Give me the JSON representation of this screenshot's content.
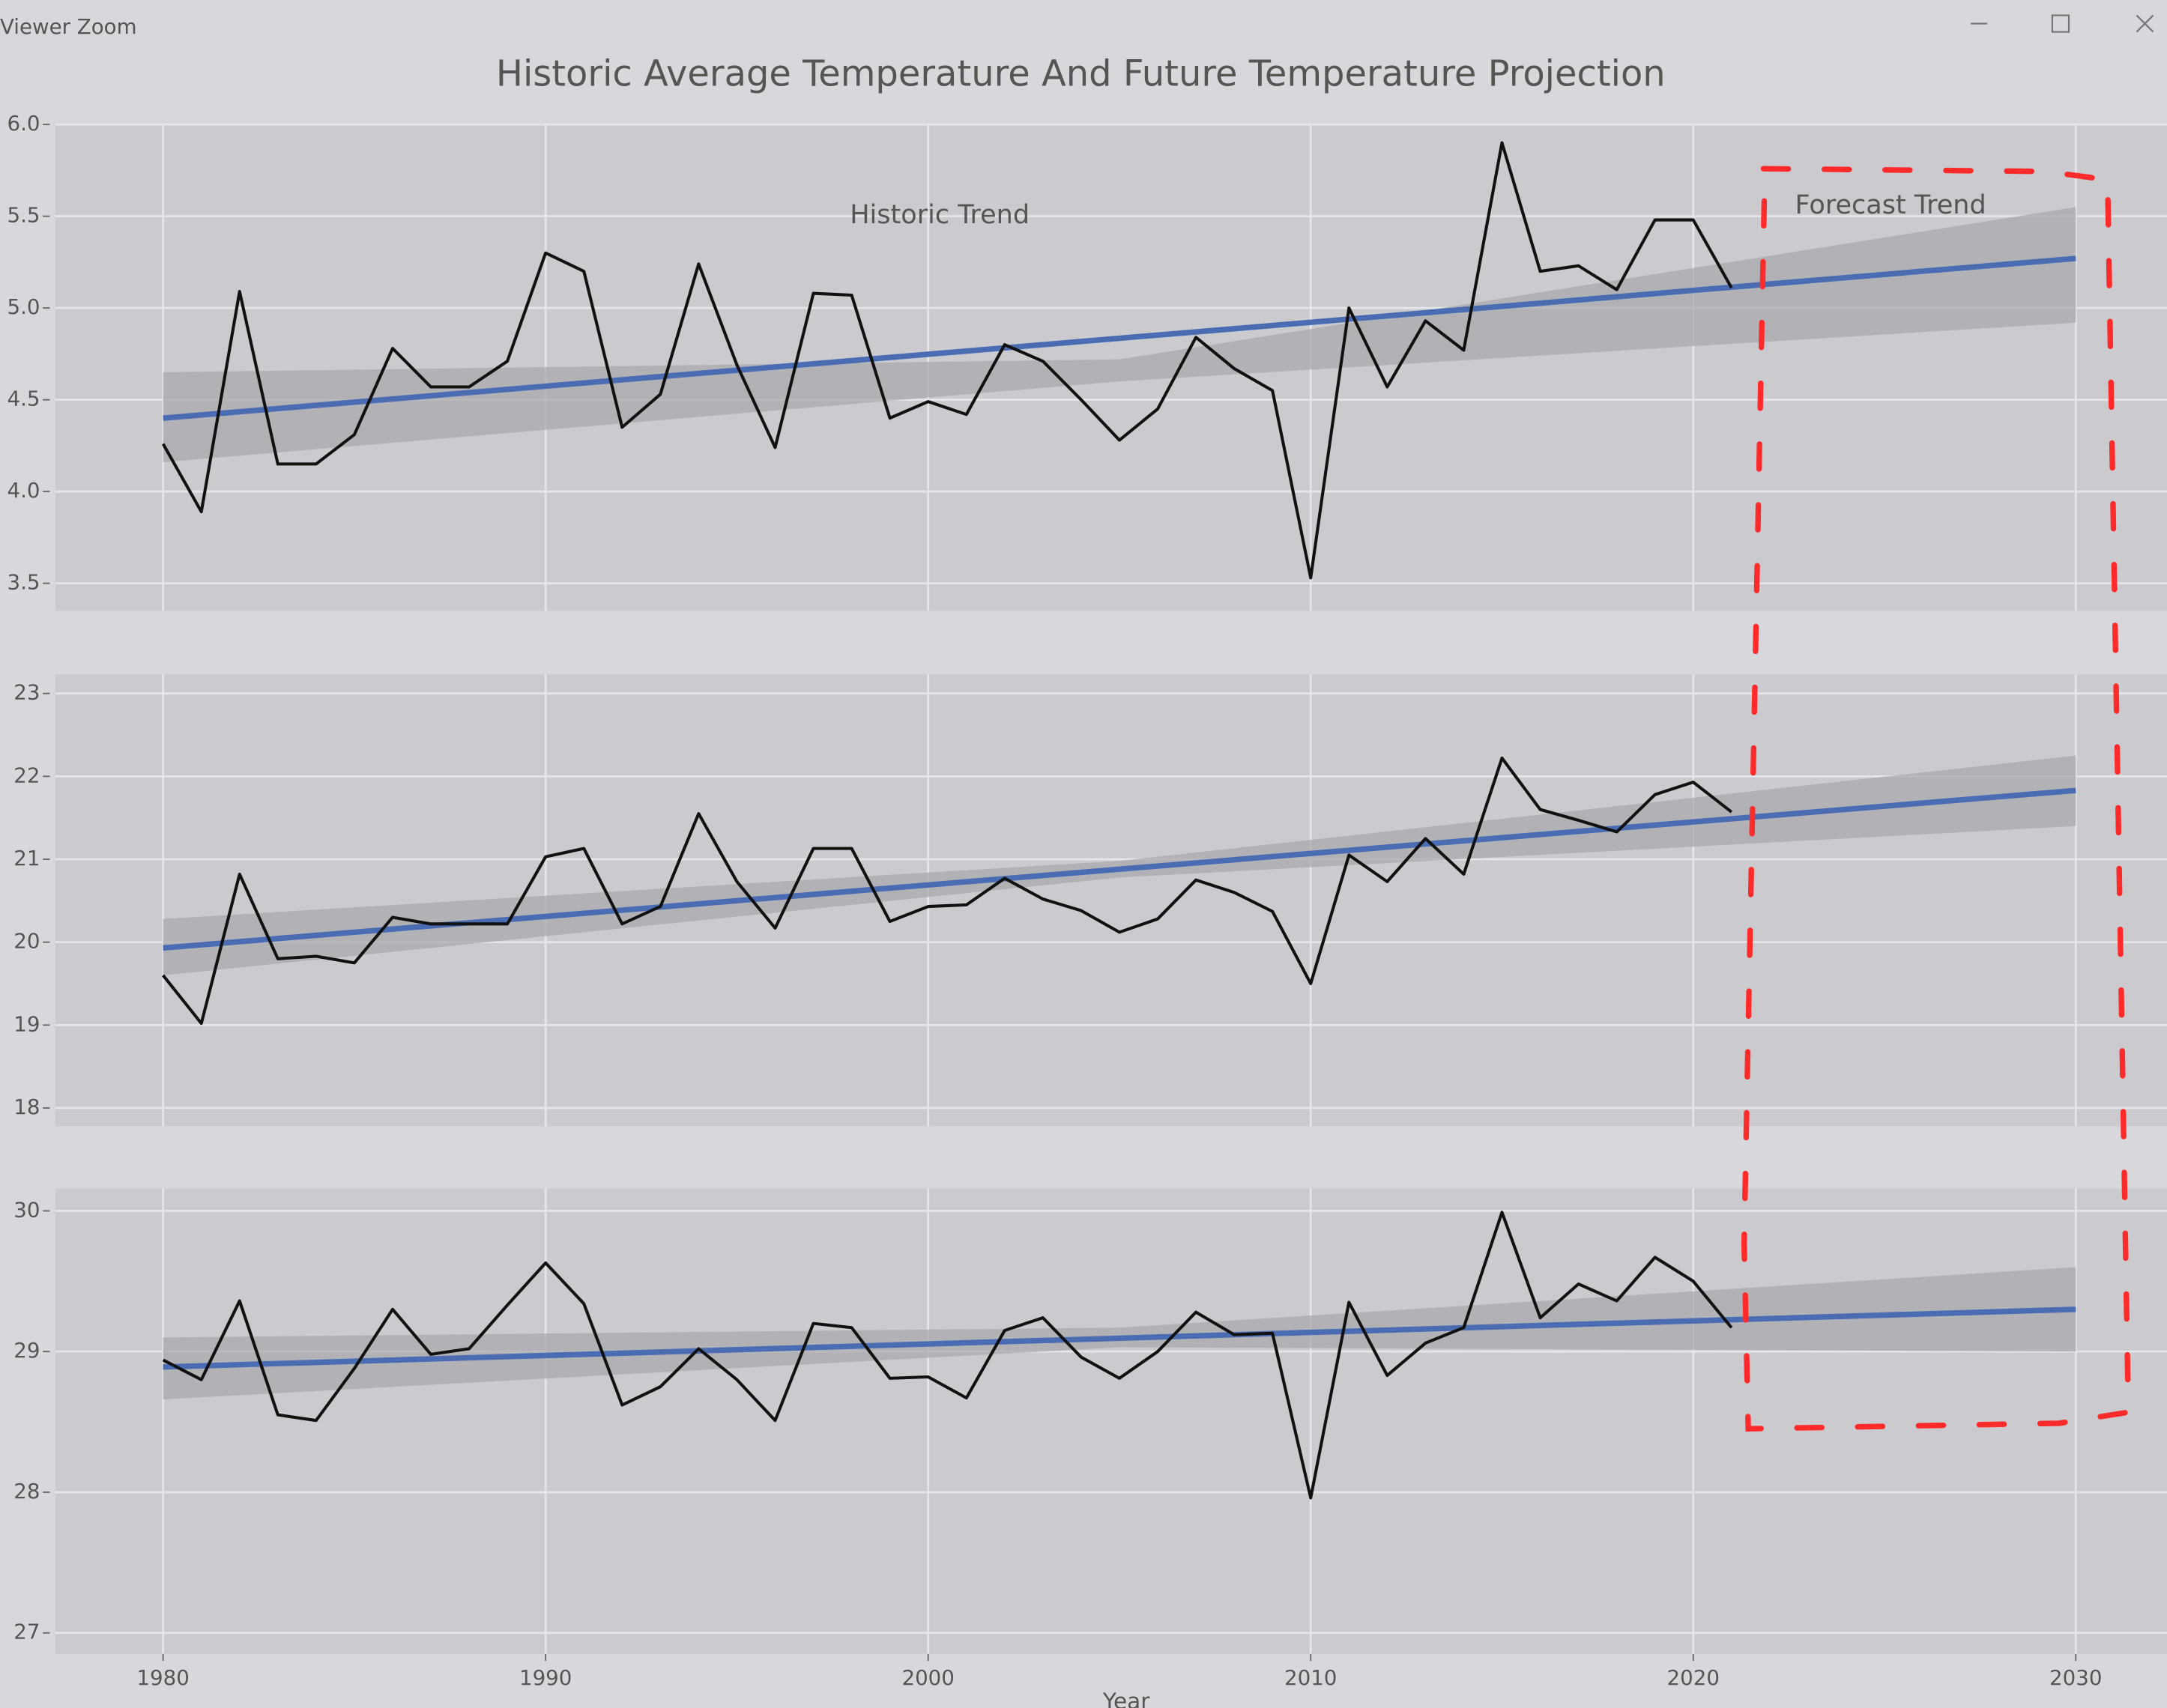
{
  "window": {
    "title": "Viewer Zoom"
  },
  "chart_data": [
    {
      "type": "line",
      "title": "Historic Average Temperature And Future Temperature Projection",
      "annotations": [
        "Historic Trend",
        "Forecast Trend"
      ],
      "x": [
        1980,
        1981,
        1982,
        1983,
        1984,
        1985,
        1986,
        1987,
        1988,
        1989,
        1990,
        1991,
        1992,
        1993,
        1994,
        1995,
        1996,
        1997,
        1998,
        1999,
        2000,
        2001,
        2002,
        2003,
        2004,
        2005,
        2006,
        2007,
        2008,
        2009,
        2010,
        2011,
        2012,
        2013,
        2014,
        2015,
        2016,
        2017,
        2018,
        2019,
        2020,
        2021
      ],
      "series": [
        {
          "color": "#111111",
          "values": [
            4.26,
            3.89,
            5.09,
            4.15,
            4.15,
            4.31,
            4.78,
            4.57,
            4.57,
            4.71,
            5.3,
            5.2,
            4.35,
            4.53,
            5.24,
            4.69,
            4.24,
            5.08,
            5.07,
            4.4,
            4.49,
            4.42,
            4.8,
            4.71,
            4.5,
            4.28,
            4.45,
            4.84,
            4.67,
            4.55,
            3.53,
            5.0,
            4.57,
            4.93,
            4.77,
            5.9,
            5.2,
            5.23,
            5.1,
            5.48,
            5.48,
            5.11
          ]
        }
      ],
      "trend": {
        "color": "#4a6cb3",
        "x": [
          1980,
          2030
        ],
        "values": [
          4.4,
          5.27
        ]
      },
      "band": {
        "color": "#a9a9ad",
        "x": [
          1980,
          2005,
          2030
        ],
        "lower": [
          4.16,
          4.6,
          4.92
        ],
        "upper": [
          4.65,
          4.72,
          5.55
        ]
      },
      "xlim": [
        1980,
        2030
      ],
      "ylim": [
        3.35,
        6.0
      ],
      "yticks": [
        {
          "value": 6.0,
          "label": "6.0"
        },
        5.5,
        {
          "value": 5.0,
          "label": "5.0"
        },
        4.5,
        {
          "value": 4.0,
          "label": "4.0"
        },
        3.5
      ],
      "grid": true
    },
    {
      "type": "line",
      "x": [
        1980,
        1981,
        1982,
        1983,
        1984,
        1985,
        1986,
        1987,
        1988,
        1989,
        1990,
        1991,
        1992,
        1993,
        1994,
        1995,
        1996,
        1997,
        1998,
        1999,
        2000,
        2001,
        2002,
        2003,
        2004,
        2005,
        2006,
        2007,
        2008,
        2009,
        2010,
        2011,
        2012,
        2013,
        2014,
        2015,
        2016,
        2017,
        2018,
        2019,
        2020,
        2021
      ],
      "series": [
        {
          "color": "#111111",
          "values": [
            19.6,
            19.02,
            20.82,
            19.8,
            19.83,
            19.75,
            20.3,
            20.22,
            20.22,
            20.22,
            21.03,
            21.13,
            20.22,
            20.43,
            21.55,
            20.73,
            20.17,
            21.13,
            21.13,
            20.25,
            20.43,
            20.45,
            20.77,
            20.52,
            20.38,
            20.12,
            20.28,
            20.75,
            20.6,
            20.37,
            19.5,
            21.05,
            20.73,
            21.25,
            20.82,
            22.22,
            21.6,
            21.47,
            21.33,
            21.78,
            21.93,
            21.57
          ]
        }
      ],
      "trend": {
        "color": "#4a6cb3",
        "x": [
          1980,
          2030
        ],
        "values": [
          19.93,
          21.83
        ]
      },
      "band": {
        "color": "#a9a9ad",
        "x": [
          1980,
          2005,
          2030
        ],
        "lower": [
          19.6,
          20.78,
          21.4
        ],
        "upper": [
          20.28,
          20.98,
          22.25
        ]
      },
      "xlim": [
        1980,
        2030
      ],
      "ylim": [
        17.78,
        23.23
      ],
      "yticks": [
        23,
        22,
        21,
        20,
        19,
        18
      ],
      "grid": true
    },
    {
      "type": "line",
      "xlabel": "Year",
      "x": [
        1980,
        1981,
        1982,
        1983,
        1984,
        1985,
        1986,
        1987,
        1988,
        1989,
        1990,
        1991,
        1992,
        1993,
        1994,
        1995,
        1996,
        1997,
        1998,
        1999,
        2000,
        2001,
        2002,
        2003,
        2004,
        2005,
        2006,
        2007,
        2008,
        2009,
        2010,
        2011,
        2012,
        2013,
        2014,
        2015,
        2016,
        2017,
        2018,
        2019,
        2020,
        2021
      ],
      "series": [
        {
          "color": "#111111",
          "values": [
            28.94,
            28.8,
            29.36,
            28.55,
            28.51,
            28.88,
            29.3,
            28.98,
            29.02,
            29.33,
            29.63,
            29.34,
            28.62,
            28.75,
            29.02,
            28.8,
            28.51,
            29.2,
            29.17,
            28.81,
            28.82,
            28.67,
            29.15,
            29.24,
            28.96,
            28.81,
            29.0,
            29.28,
            29.12,
            29.13,
            27.96,
            29.35,
            28.83,
            29.06,
            29.17,
            29.99,
            29.24,
            29.48,
            29.36,
            29.67,
            29.5,
            29.17
          ]
        }
      ],
      "trend": {
        "color": "#4a6cb3",
        "x": [
          1980,
          2030
        ],
        "values": [
          28.89,
          29.3
        ]
      },
      "band": {
        "color": "#a9a9ad",
        "x": [
          1980,
          2005,
          2030
        ],
        "lower": [
          28.66,
          29.03,
          29.0
        ],
        "upper": [
          29.1,
          29.17,
          29.6
        ]
      },
      "xlim": [
        1980,
        2030
      ],
      "ylim": [
        26.85,
        30.16
      ],
      "xticks": [
        1980,
        1990,
        2000,
        2010,
        2020,
        2030
      ],
      "yticks": [
        30,
        29,
        28,
        27
      ],
      "grid": true
    }
  ]
}
